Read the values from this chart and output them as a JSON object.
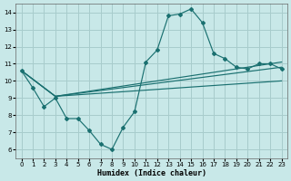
{
  "xlabel": "Humidex (Indice chaleur)",
  "background_color": "#c8e8e8",
  "grid_color": "#a8cccc",
  "line_color": "#1a7070",
  "xlim": [
    -0.5,
    23.5
  ],
  "ylim": [
    5.5,
    14.5
  ],
  "xticks": [
    0,
    1,
    2,
    3,
    4,
    5,
    6,
    7,
    8,
    9,
    10,
    11,
    12,
    13,
    14,
    15,
    16,
    17,
    18,
    19,
    20,
    21,
    22,
    23
  ],
  "yticks": [
    6,
    7,
    8,
    9,
    10,
    11,
    12,
    13,
    14
  ],
  "main_x": [
    0,
    1,
    2,
    3,
    4,
    5,
    6,
    7,
    8,
    9,
    10,
    11,
    12,
    13,
    14,
    15,
    16,
    17,
    18,
    19,
    20,
    21,
    22,
    23
  ],
  "main_y": [
    10.6,
    9.6,
    8.5,
    9.0,
    7.8,
    7.8,
    7.1,
    6.3,
    6.0,
    7.3,
    8.2,
    11.1,
    11.8,
    13.8,
    13.9,
    14.2,
    13.4,
    11.6,
    11.3,
    10.8,
    10.7,
    11.0,
    11.0,
    10.7
  ],
  "trend1_x": [
    0,
    3,
    23
  ],
  "trend1_y": [
    10.6,
    9.1,
    10.0
  ],
  "trend2_x": [
    0,
    3,
    23
  ],
  "trend2_y": [
    10.6,
    9.1,
    10.8
  ],
  "trend3_x": [
    0,
    3,
    23
  ],
  "trend3_y": [
    10.6,
    9.1,
    11.1
  ]
}
